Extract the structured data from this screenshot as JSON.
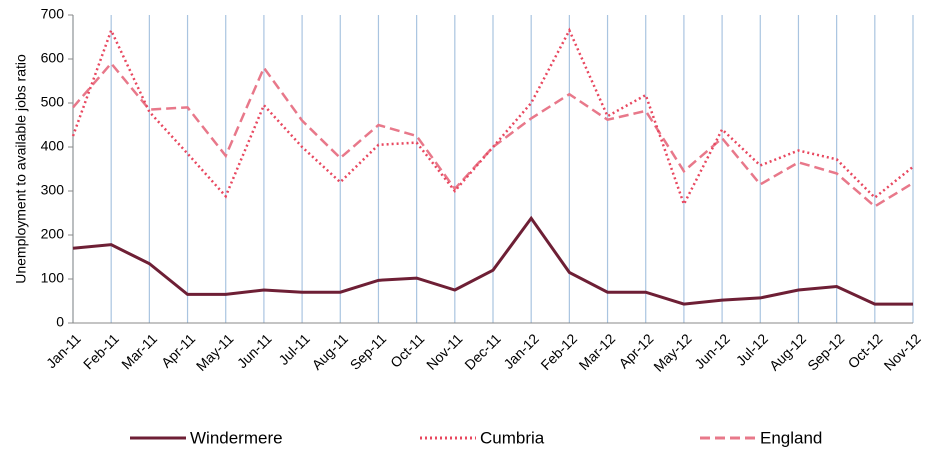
{
  "chart_data": {
    "type": "line",
    "y_label": "Unemployment to available jobs ratio",
    "categories": [
      "Jan-11",
      "Feb-11",
      "Mar-11",
      "Apr-11",
      "May-11",
      "Jun-11",
      "Jul-11",
      "Aug-11",
      "Sep-11",
      "Oct-11",
      "Nov-11",
      "Dec-11",
      "Jan-12",
      "Feb-12",
      "Mar-12",
      "Apr-12",
      "May-12",
      "Jun-12",
      "Jul-12",
      "Aug-12",
      "Sep-12",
      "Oct-12",
      "Nov-12"
    ],
    "series": [
      {
        "name": "Windermere",
        "color": "#6e1f35",
        "line_style": "solid",
        "values": [
          170,
          178,
          135,
          65,
          65,
          75,
          70,
          70,
          97,
          102,
          75,
          120,
          238,
          115,
          70,
          70,
          43,
          52,
          57,
          75,
          83,
          43,
          43
        ]
      },
      {
        "name": "Cumbria",
        "color": "#e8475f",
        "line_style": "dotted",
        "values": [
          425,
          665,
          480,
          385,
          288,
          495,
          400,
          320,
          405,
          410,
          300,
          400,
          500,
          665,
          470,
          518,
          270,
          440,
          358,
          392,
          372,
          285,
          355
        ]
      },
      {
        "name": "England",
        "color": "#e8788a",
        "line_style": "dashed",
        "values": [
          490,
          590,
          485,
          490,
          380,
          580,
          460,
          375,
          450,
          425,
          305,
          400,
          465,
          520,
          462,
          482,
          345,
          420,
          315,
          365,
          340,
          265,
          318
        ]
      }
    ],
    "ylim": [
      0,
      700
    ],
    "yticks": [
      0,
      100,
      200,
      300,
      400,
      500,
      600,
      700
    ],
    "grid": "x",
    "legend": "bottom"
  }
}
